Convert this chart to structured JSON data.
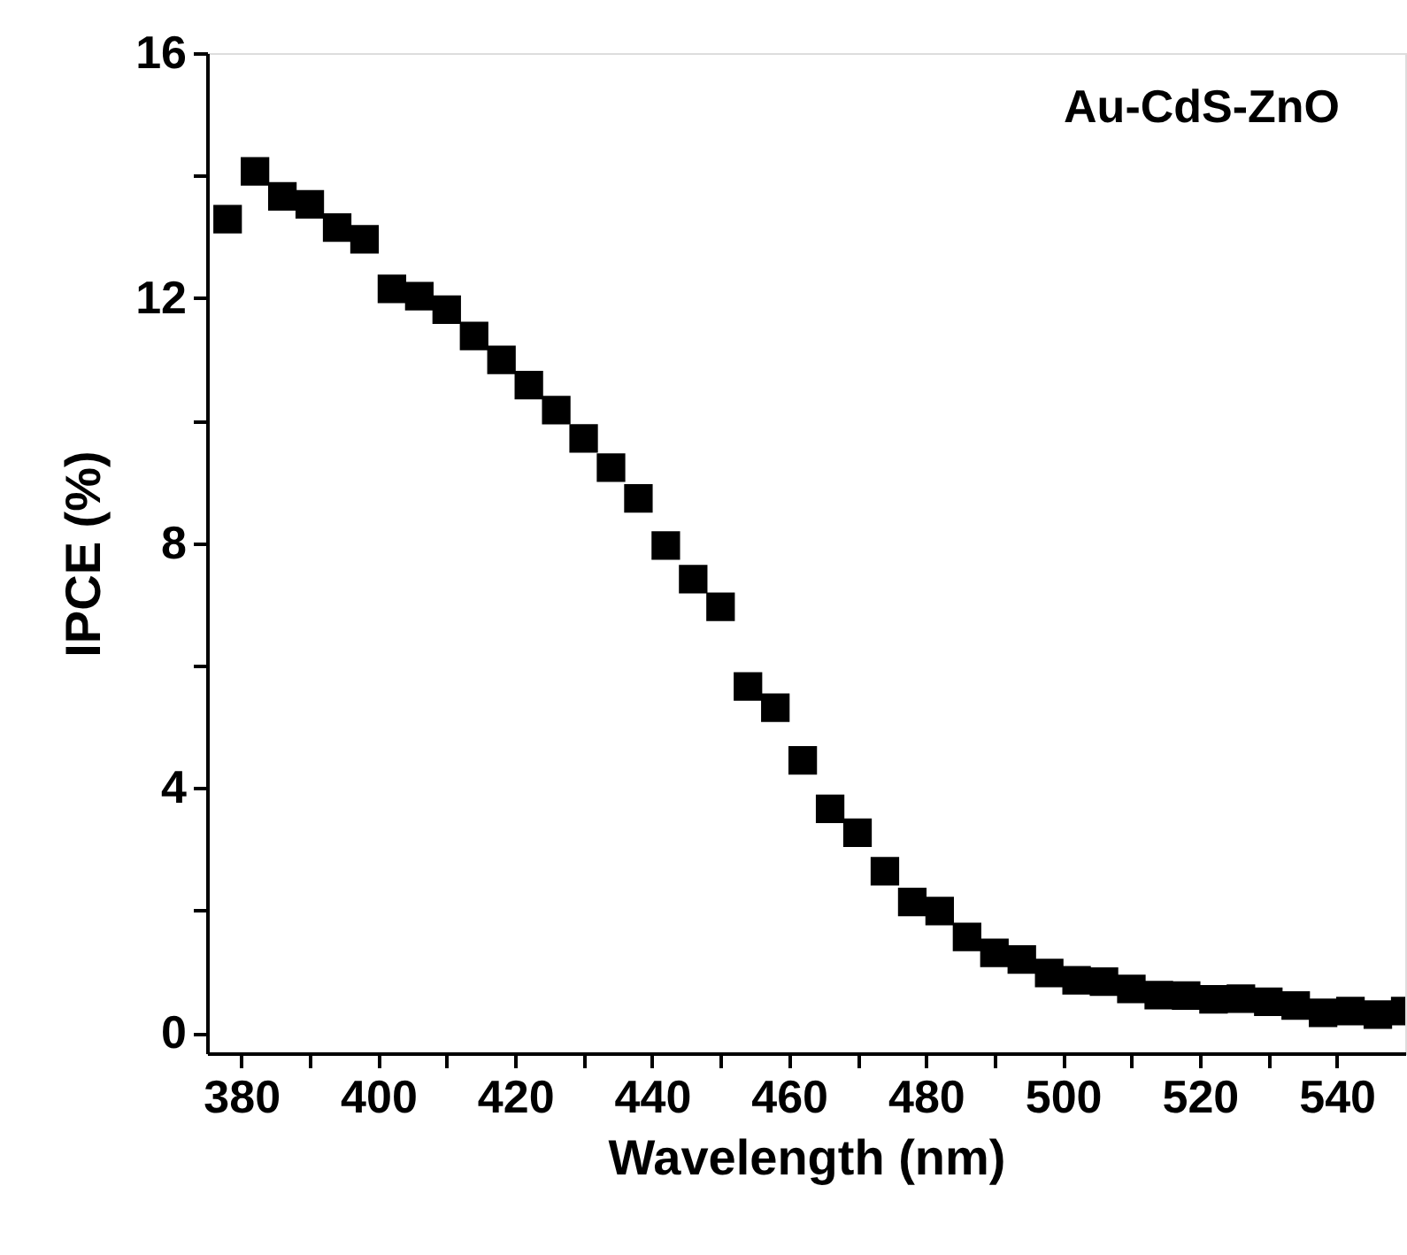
{
  "chart_data": {
    "type": "scatter",
    "xlabel": "Wavelength (nm)",
    "ylabel": "IPCE (%)",
    "annotations": [
      "Au-CdS-ZnO"
    ],
    "x": [
      378,
      382,
      386,
      390,
      394,
      398,
      402,
      406,
      410,
      414,
      418,
      422,
      426,
      430,
      434,
      438,
      442,
      446,
      450,
      454,
      458,
      462,
      466,
      470,
      474,
      478,
      482,
      486,
      490,
      494,
      498,
      502,
      506,
      510,
      514,
      518,
      522,
      526,
      530,
      534,
      538,
      542,
      546,
      550
    ],
    "series": [
      {
        "color": "#000000",
        "values": [
          13.29,
          14.07,
          13.66,
          13.53,
          13.15,
          12.96,
          12.15,
          12.03,
          11.81,
          11.38,
          10.99,
          10.58,
          10.17,
          9.71,
          9.23,
          8.73,
          7.96,
          7.41,
          6.96,
          5.66,
          5.31,
          4.45,
          3.66,
          3.27,
          2.64,
          2.14,
          1.99,
          1.57,
          1.31,
          1.2,
          0.98,
          0.86,
          0.84,
          0.72,
          0.62,
          0.61,
          0.55,
          0.56,
          0.51,
          0.45,
          0.33,
          0.36,
          0.3,
          0.36
        ]
      }
    ],
    "marker": "square",
    "grid": false,
    "xlim": [
      375,
      550
    ],
    "xticks": [
      380,
      {
        "value": 390,
        "label": null
      },
      400,
      {
        "value": 410,
        "label": null
      },
      420,
      {
        "value": 430,
        "label": null
      },
      440,
      {
        "value": 450,
        "label": null
      },
      460,
      {
        "value": 470,
        "label": null
      },
      480,
      {
        "value": 490,
        "label": null
      },
      500,
      {
        "value": 510,
        "label": null
      },
      520,
      {
        "value": 530,
        "label": null
      },
      540
    ],
    "ylim": [
      -0.33,
      16
    ],
    "yticks": [
      0,
      {
        "value": 2,
        "label": null
      },
      4,
      {
        "value": 6,
        "label": null
      },
      8,
      {
        "value": 10,
        "label": null
      },
      12,
      {
        "value": 14,
        "label": null
      },
      16
    ]
  }
}
